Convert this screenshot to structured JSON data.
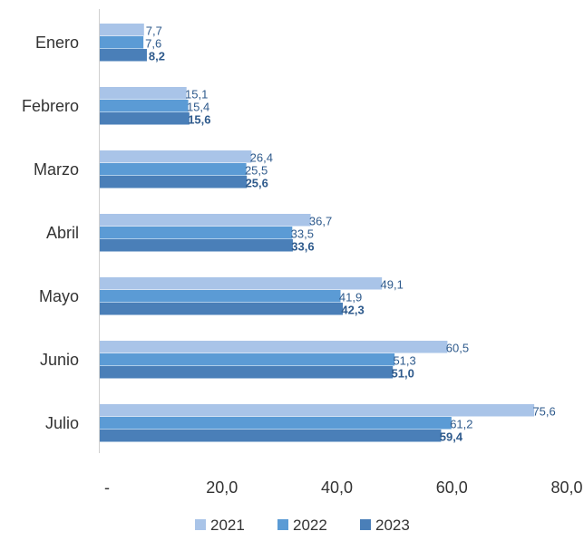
{
  "chart_data": {
    "type": "bar",
    "orientation": "horizontal",
    "categories": [
      "Enero",
      "Febrero",
      "Marzo",
      "Abril",
      "Mayo",
      "Junio",
      "Julio"
    ],
    "series": [
      {
        "name": "2021",
        "color": "#a9c4e8",
        "values": [
          7.7,
          15.1,
          26.4,
          36.7,
          49.1,
          60.5,
          75.6
        ],
        "labels": [
          "7,7",
          "15,1",
          "26,4",
          "36,7",
          "49,1",
          "60,5",
          "75,6"
        ],
        "label_bold": false
      },
      {
        "name": "2022",
        "color": "#5b9bd5",
        "values": [
          7.6,
          15.4,
          25.5,
          33.5,
          41.9,
          51.3,
          61.2
        ],
        "labels": [
          "7,6",
          "15,4",
          "25,5",
          "33,5",
          "41,9",
          "51,3",
          "61,2"
        ],
        "label_bold": false
      },
      {
        "name": "2023",
        "color": "#4a7fb8",
        "values": [
          8.2,
          15.6,
          25.6,
          33.6,
          42.3,
          51.0,
          59.4
        ],
        "labels": [
          "8,2",
          "15,6",
          "25,6",
          "33,6",
          "42,3",
          "51,0",
          "59,4"
        ],
        "label_bold": true
      }
    ],
    "xlim": [
      0,
      80
    ],
    "xticks": [
      0,
      20,
      40,
      60,
      80
    ],
    "xtick_labels": [
      "-",
      "20,0",
      "40,0",
      "60,0",
      "80,0"
    ],
    "grid": false,
    "legend": "bottom"
  }
}
